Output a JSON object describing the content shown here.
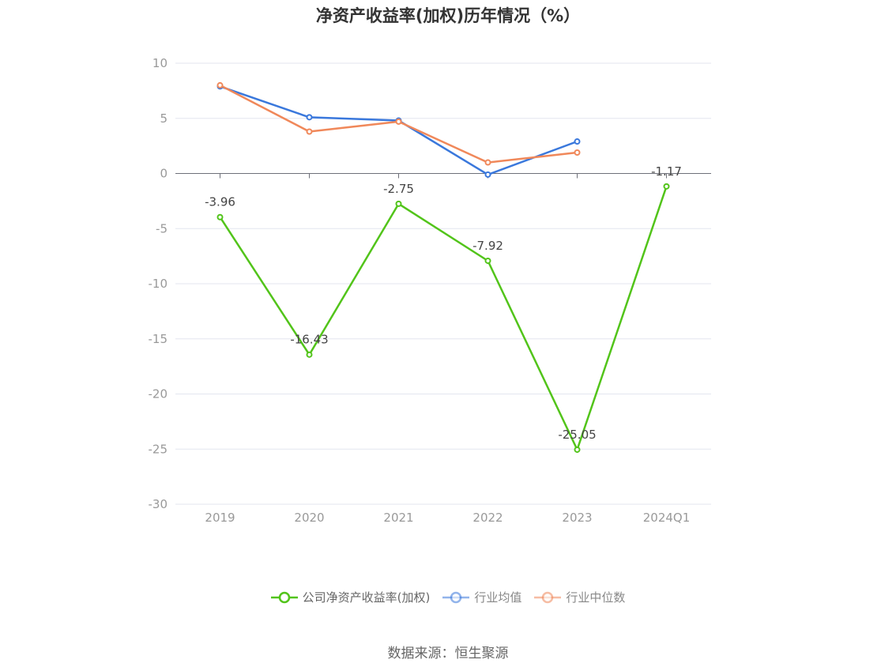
{
  "title": "净资产收益率(加权)历年情况（%）",
  "source": "数据来源：恒生聚源",
  "chart_data": {
    "type": "line",
    "categories": [
      "2019",
      "2020",
      "2021",
      "2022",
      "2023",
      "2024Q1"
    ],
    "ylim": [
      -30,
      10
    ],
    "yticks": [
      10,
      5,
      0,
      -5,
      -10,
      -15,
      -20,
      -25,
      -30
    ],
    "grid": true,
    "legend_position": "bottom",
    "series": [
      {
        "name": "公司净资产收益率(加权)",
        "color": "#52c41a",
        "show_labels": true,
        "values": [
          -3.96,
          -16.43,
          -2.75,
          -7.92,
          -25.05,
          -1.17
        ]
      },
      {
        "name": "行业均值",
        "color": "#3a78dc",
        "show_labels": false,
        "values": [
          7.9,
          5.1,
          4.8,
          -0.1,
          2.9,
          null
        ]
      },
      {
        "name": "行业中位数",
        "color": "#f0885a",
        "show_labels": false,
        "values": [
          8.0,
          3.8,
          4.7,
          1.0,
          1.9,
          null
        ]
      }
    ]
  }
}
